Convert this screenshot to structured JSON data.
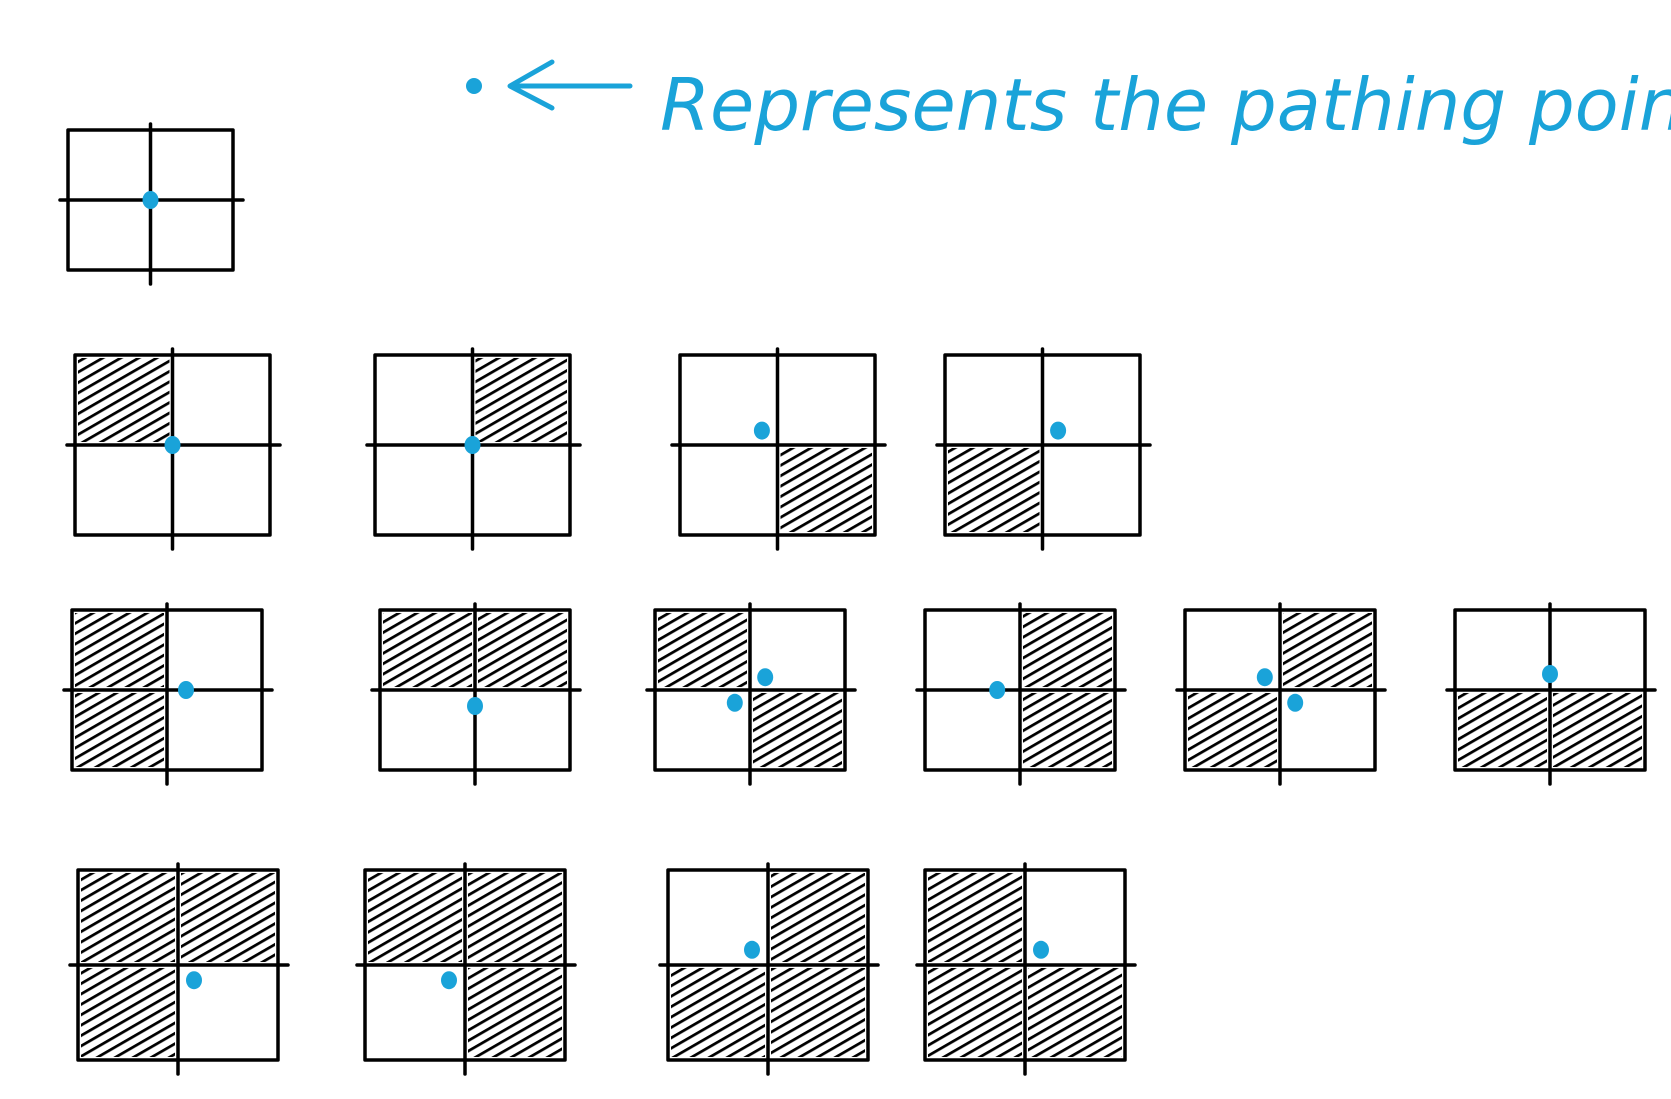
{
  "legend": {
    "label": "Represents the pathing point",
    "point_color": "#1aa3d9",
    "arrow": "left-arrow-icon"
  },
  "colors": {
    "ink": "#000000",
    "accent": "#1aa3d9",
    "background": "#ffffff"
  },
  "rows": [
    {
      "name": "row-0",
      "cells": [
        {
          "shaded": [],
          "points": [
            "center"
          ]
        }
      ]
    },
    {
      "name": "row-1",
      "cells": [
        {
          "shaded": [
            "top-left"
          ],
          "points": [
            "center"
          ]
        },
        {
          "shaded": [
            "top-right"
          ],
          "points": [
            "center"
          ]
        },
        {
          "shaded": [
            "bottom-right"
          ],
          "points": [
            "top-left"
          ]
        },
        {
          "shaded": [
            "bottom-left"
          ],
          "points": [
            "top-right"
          ]
        }
      ]
    },
    {
      "name": "row-2",
      "cells": [
        {
          "shaded": [
            "top-left",
            "bottom-left"
          ],
          "points": [
            "right"
          ]
        },
        {
          "shaded": [
            "top-left",
            "top-right"
          ],
          "points": [
            "bottom"
          ]
        },
        {
          "shaded": [
            "top-left",
            "bottom-right"
          ],
          "points": [
            "top-right",
            "bottom-left"
          ]
        },
        {
          "shaded": [
            "top-right",
            "bottom-right"
          ],
          "points": [
            "left"
          ]
        },
        {
          "shaded": [
            "top-right",
            "bottom-left"
          ],
          "points": [
            "top-left",
            "bottom-right"
          ]
        },
        {
          "shaded": [
            "bottom-left",
            "bottom-right"
          ],
          "points": [
            "top"
          ]
        }
      ]
    },
    {
      "name": "row-3",
      "cells": [
        {
          "shaded": [
            "top-left",
            "top-right",
            "bottom-left"
          ],
          "points": [
            "bottom-right"
          ]
        },
        {
          "shaded": [
            "top-left",
            "top-right",
            "bottom-right"
          ],
          "points": [
            "bottom-left"
          ]
        },
        {
          "shaded": [
            "top-right",
            "bottom-left",
            "bottom-right"
          ],
          "points": [
            "top-left"
          ]
        },
        {
          "shaded": [
            "top-left",
            "bottom-left",
            "bottom-right"
          ],
          "points": [
            "top-right"
          ]
        }
      ]
    }
  ]
}
